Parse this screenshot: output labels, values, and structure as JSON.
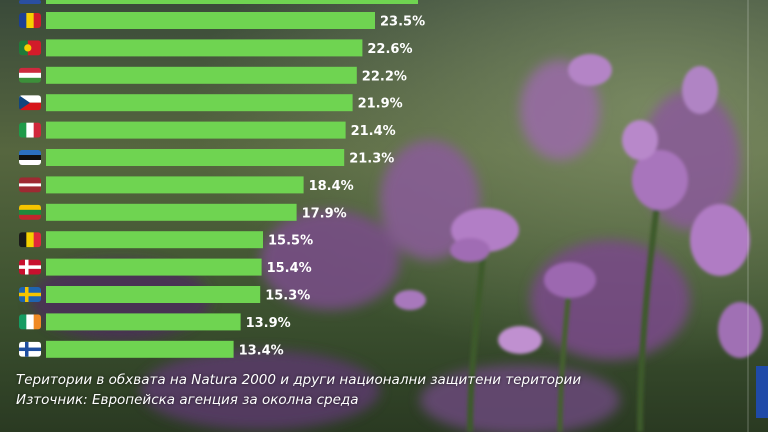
{
  "colors": {
    "bar": "#6fd451",
    "label": "#ffffff"
  },
  "chart_data": {
    "type": "bar",
    "orientation": "horizontal",
    "categories": [
      "Romania",
      "Portugal",
      "Hungary",
      "Czechia",
      "Italy",
      "Estonia",
      "Latvia",
      "Lithuania",
      "Belgium",
      "Denmark",
      "Sweden",
      "Ireland",
      "Finland"
    ],
    "flags": [
      "flag-romania-icon",
      "flag-portugal-icon",
      "flag-hungary-icon",
      "flag-czechia-icon",
      "flag-italy-icon",
      "flag-estonia-icon",
      "flag-latvia-icon",
      "flag-lithuania-icon",
      "flag-belgium-icon",
      "flag-denmark-icon",
      "flag-sweden-icon",
      "flag-ireland-icon",
      "flag-finland-icon"
    ],
    "values": [
      23.5,
      22.6,
      22.2,
      21.9,
      21.4,
      21.3,
      18.4,
      17.9,
      15.5,
      15.4,
      15.3,
      13.9,
      13.4
    ],
    "value_labels": [
      "23.5%",
      "22.6%",
      "22.2%",
      "21.9%",
      "21.4%",
      "21.3%",
      "18.4%",
      "17.9%",
      "15.5%",
      "15.4%",
      "15.3%",
      "13.9%",
      "13.4%"
    ],
    "unit": "%"
  },
  "caption": {
    "line1": "Територии в обхвата на Natura 2000 и други национални защитени територии",
    "line2": "Източник: Европейска агенция за околна среда"
  }
}
